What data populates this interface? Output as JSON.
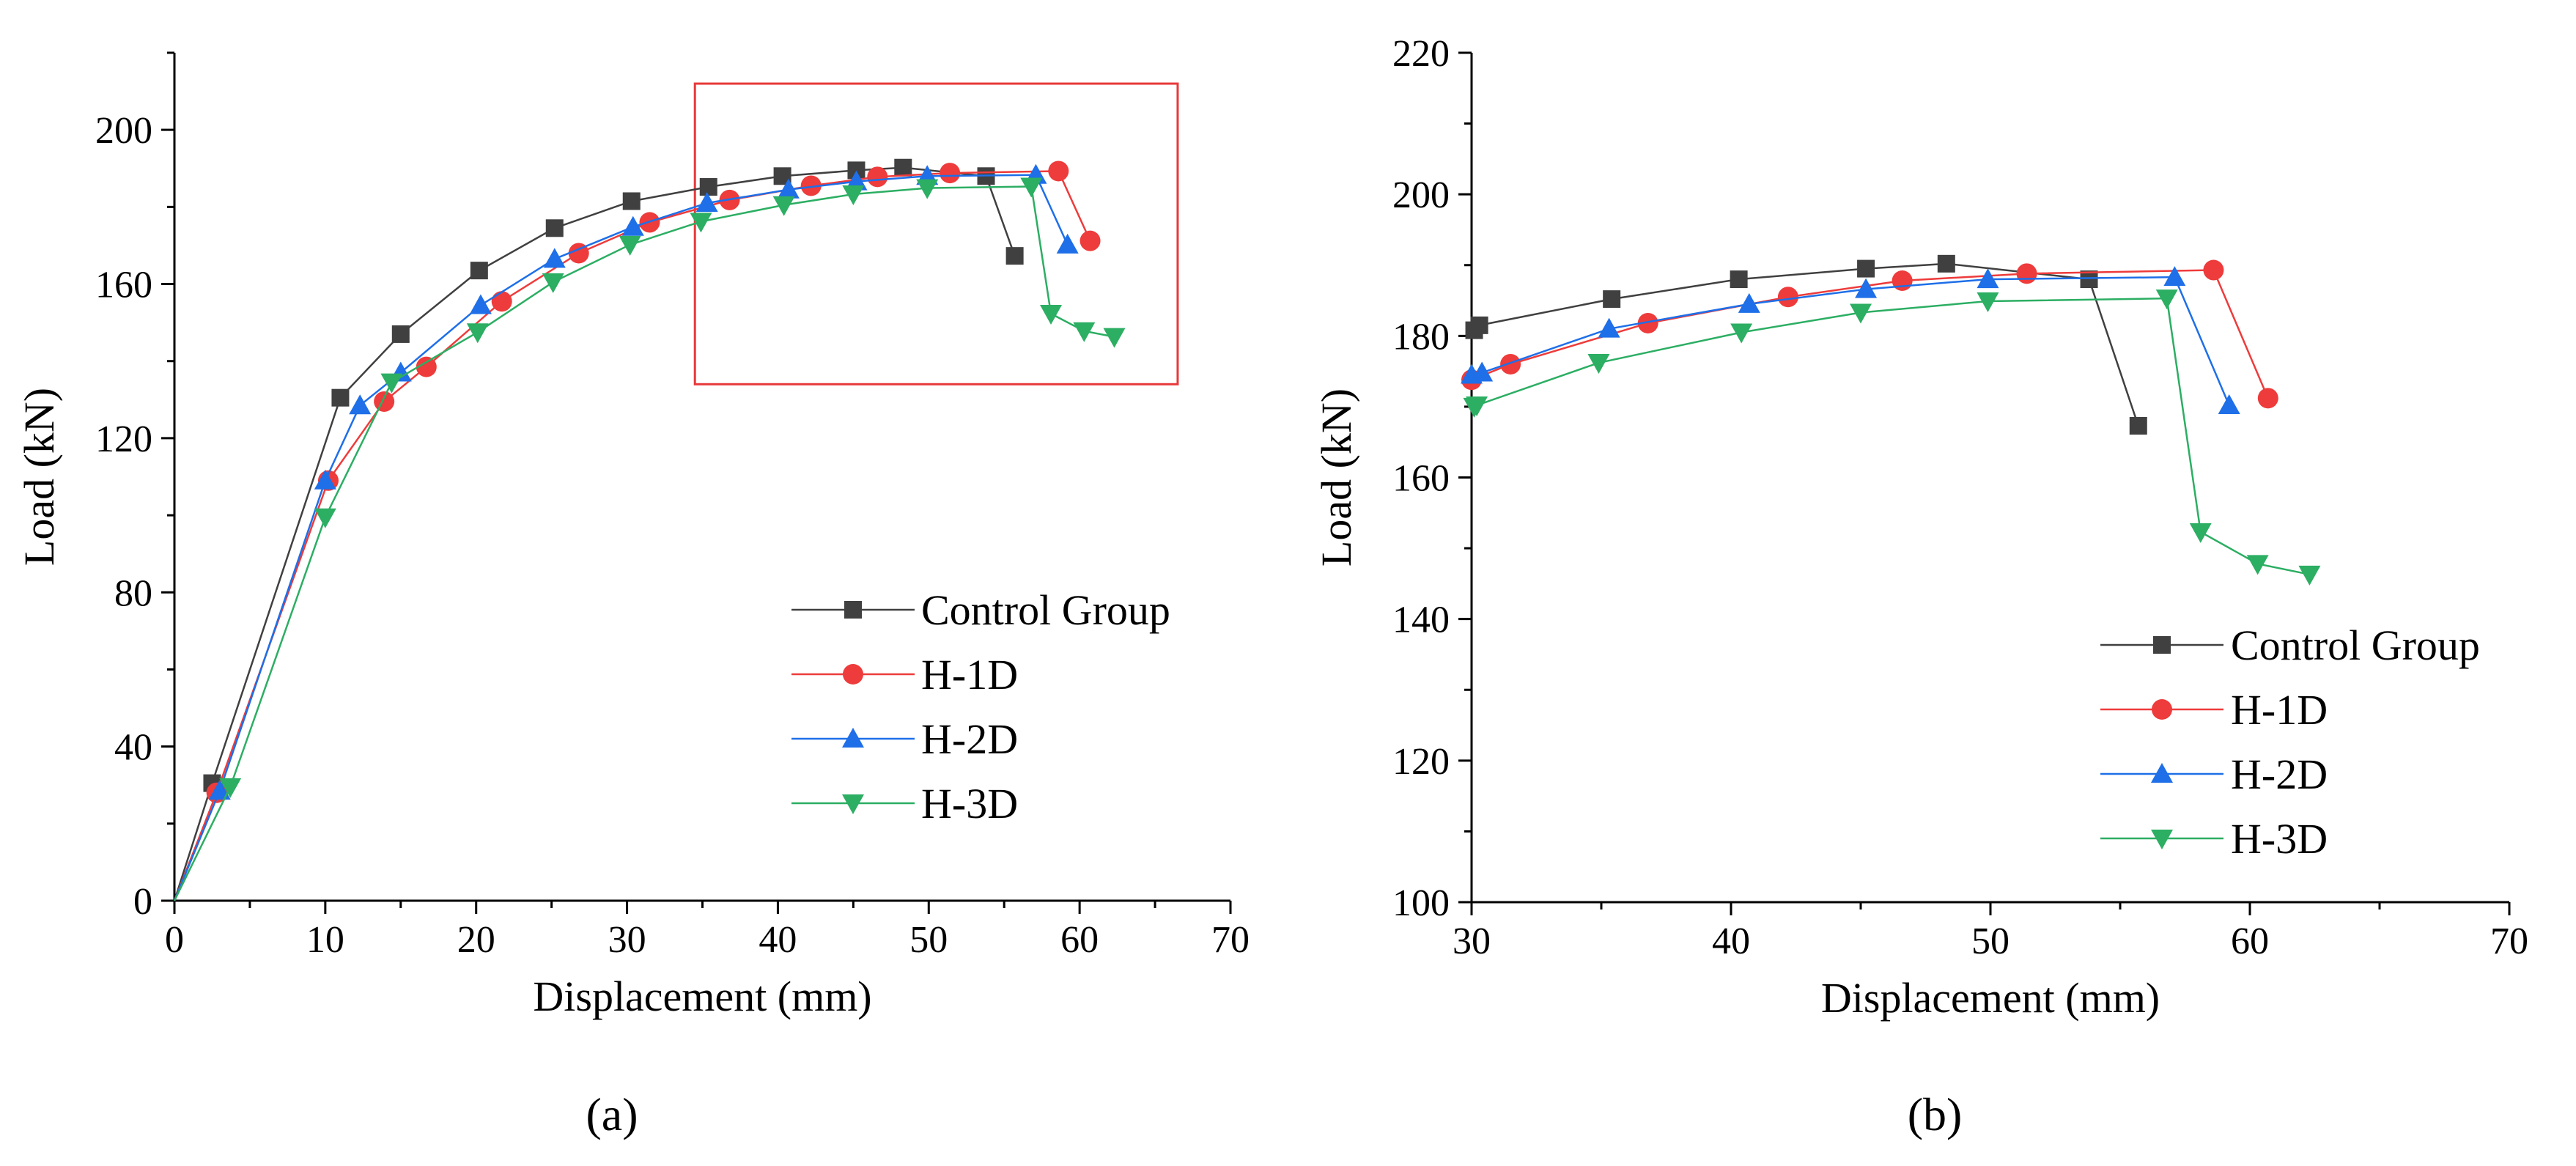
{
  "panel_labels": {
    "a": "(a)",
    "b": "(b)"
  },
  "colors": {
    "Control Group": "#404040",
    "H-1D": "#ee3b3b",
    "H-2D": "#1e6fe8",
    "H-3D": "#2cae63",
    "zoom_box": "#e8383a"
  },
  "chart_data": [
    {
      "type": "line",
      "panel": "a",
      "title": "",
      "xlabel": "Displacement (mm)",
      "ylabel": "Load (kN)",
      "xlim": [
        0,
        70
      ],
      "ylim": [
        0,
        220
      ],
      "xticks": [
        0,
        10,
        20,
        30,
        40,
        50,
        60,
        70
      ],
      "yticks": [
        0,
        40,
        80,
        120,
        160,
        200
      ],
      "xtick_labels": [
        "0",
        "10",
        "20",
        "30",
        "40",
        "50",
        "60",
        "70"
      ],
      "ytick_labels": [
        "0",
        "40",
        "80",
        "120",
        "160",
        "200"
      ],
      "legend_position": "bottom-right",
      "zoom_region": {
        "x": [
          34.5,
          66.5
        ],
        "y": [
          134,
          212
        ]
      },
      "series": [
        {
          "name": "Control Group",
          "marker": "square",
          "x": [
            0,
            2.5,
            11,
            15,
            20.2,
            25.2,
            30.3,
            35.4,
            40.3,
            45.2,
            48.3,
            53.8,
            55.7
          ],
          "y": [
            0,
            30.5,
            130.5,
            147,
            163.5,
            174.5,
            181.5,
            185.2,
            188,
            189.5,
            190.2,
            188,
            167.3
          ]
        },
        {
          "name": "H-1D",
          "marker": "circle",
          "x": [
            0,
            2.8,
            10.2,
            13.9,
            16.7,
            21.7,
            26.8,
            31.5,
            36.8,
            42.2,
            46.6,
            51.4,
            58.6,
            60.7
          ],
          "y": [
            0,
            28,
            109,
            129.5,
            138.5,
            155.5,
            168,
            176,
            181.8,
            185.5,
            187.8,
            188.8,
            189.3,
            171.2
          ]
        },
        {
          "name": "H-2D",
          "marker": "triangle-up",
          "x": [
            0,
            3,
            10,
            12.3,
            15,
            20.3,
            25.2,
            30.4,
            35.3,
            40.7,
            45.2,
            49.9,
            57.1,
            59.2
          ],
          "y": [
            0,
            28.5,
            109,
            128.5,
            137,
            154.5,
            166.5,
            174.8,
            181,
            184.5,
            186.6,
            188,
            188.3,
            170.2
          ]
        },
        {
          "name": "H-3D",
          "marker": "triangle-down",
          "x": [
            0,
            3.7,
            10,
            14.4,
            20.1,
            25.1,
            30.2,
            34.9,
            40.4,
            45,
            49.9,
            56.8,
            58.1,
            60.3,
            62.3
          ],
          "y": [
            0,
            29.5,
            99.5,
            134.5,
            147.5,
            160.5,
            170.2,
            176.2,
            180.5,
            183.3,
            184.9,
            185.3,
            152.3,
            147.8,
            146.3
          ]
        }
      ]
    },
    {
      "type": "line",
      "panel": "b",
      "title": "",
      "xlabel": "Displacement (mm)",
      "ylabel": "Load (kN)",
      "xlim": [
        30,
        70
      ],
      "ylim": [
        100,
        220
      ],
      "xticks": [
        30,
        40,
        50,
        60,
        70
      ],
      "yticks": [
        100,
        120,
        140,
        160,
        180,
        200,
        220
      ],
      "xtick_labels": [
        "30",
        "40",
        "50",
        "60",
        "70"
      ],
      "ytick_labels": [
        "100",
        "120",
        "140",
        "160",
        "180",
        "200",
        "220"
      ],
      "legend_position": "lower-middle-right",
      "series": [
        {
          "name": "Control Group",
          "marker": "square",
          "x": [
            30.1,
            30.3,
            35.4,
            40.3,
            45.2,
            48.3,
            53.8,
            55.7
          ],
          "y": [
            180.8,
            181.5,
            185.2,
            188,
            189.5,
            190.2,
            188,
            167.3
          ]
        },
        {
          "name": "H-1D",
          "marker": "circle",
          "x": [
            30,
            31.5,
            36.8,
            42.2,
            46.6,
            51.4,
            58.6,
            60.7
          ],
          "y": [
            173.8,
            176,
            181.8,
            185.5,
            187.8,
            188.8,
            189.3,
            171.2
          ]
        },
        {
          "name": "H-2D",
          "marker": "triangle-up",
          "x": [
            30,
            30.4,
            35.3,
            40.7,
            45.2,
            49.9,
            57.1,
            59.2
          ],
          "y": [
            174.5,
            174.8,
            181,
            184.5,
            186.6,
            188,
            188.3,
            170.2
          ]
        },
        {
          "name": "H-3D",
          "marker": "triangle-down",
          "x": [
            30.1,
            30.2,
            34.9,
            40.4,
            45,
            49.9,
            56.8,
            58.1,
            60.3,
            62.3
          ],
          "y": [
            170,
            170.2,
            176.2,
            180.5,
            183.3,
            184.9,
            185.3,
            152.3,
            147.8,
            146.3
          ]
        }
      ]
    }
  ]
}
